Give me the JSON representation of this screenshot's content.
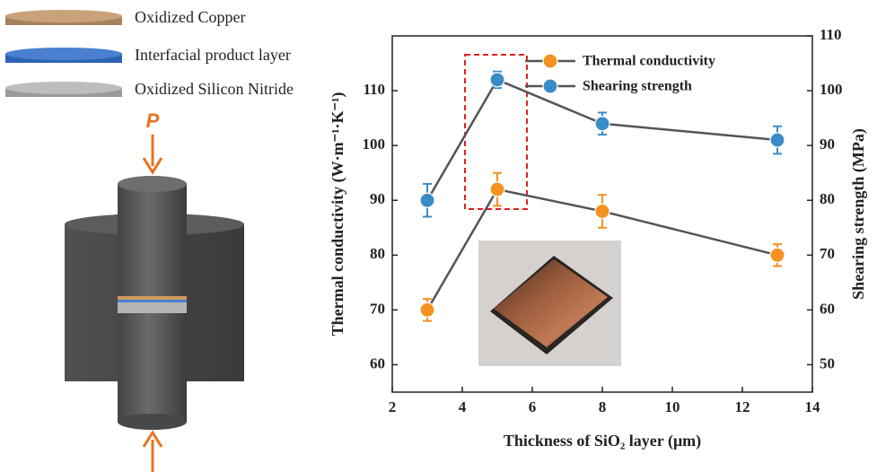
{
  "diagram": {
    "layers": [
      {
        "label": "Oxidized Copper"
      },
      {
        "label": "Interfacial product layer"
      },
      {
        "label": "Oxidized Silicon Nitride"
      }
    ],
    "force_label": "P"
  },
  "chart_data": {
    "type": "line",
    "x_label": "Thickness of SiO₂ layer (μm)",
    "y_label": "Thermal conductivity (W·m⁻¹·K⁻¹)",
    "y2_label": "Shearing strength (MPa)",
    "x": [
      3,
      5,
      8,
      13
    ],
    "series": [
      {
        "name": "Thermal conductivity",
        "color": "#f39220",
        "values": [
          70,
          92,
          88,
          80
        ],
        "error": [
          2,
          3,
          3,
          2
        ]
      },
      {
        "name": "Shearing strength",
        "color": "#3a8cc6",
        "axis": "y2",
        "values": [
          80,
          102,
          94,
          91
        ],
        "error": [
          3,
          1.5,
          2,
          2.5
        ]
      }
    ],
    "xlim": [
      2,
      14
    ],
    "xticks": [
      2,
      4,
      6,
      8,
      10,
      12,
      14
    ],
    "ylim": [
      55,
      120
    ],
    "yticks": [
      60,
      70,
      80,
      90,
      100,
      110
    ],
    "y2lim": [
      45,
      110
    ],
    "y2ticks": [
      50,
      60,
      70,
      80,
      90,
      100,
      110
    ],
    "line_color": "#555555",
    "legend": "upper right",
    "grid": false
  }
}
